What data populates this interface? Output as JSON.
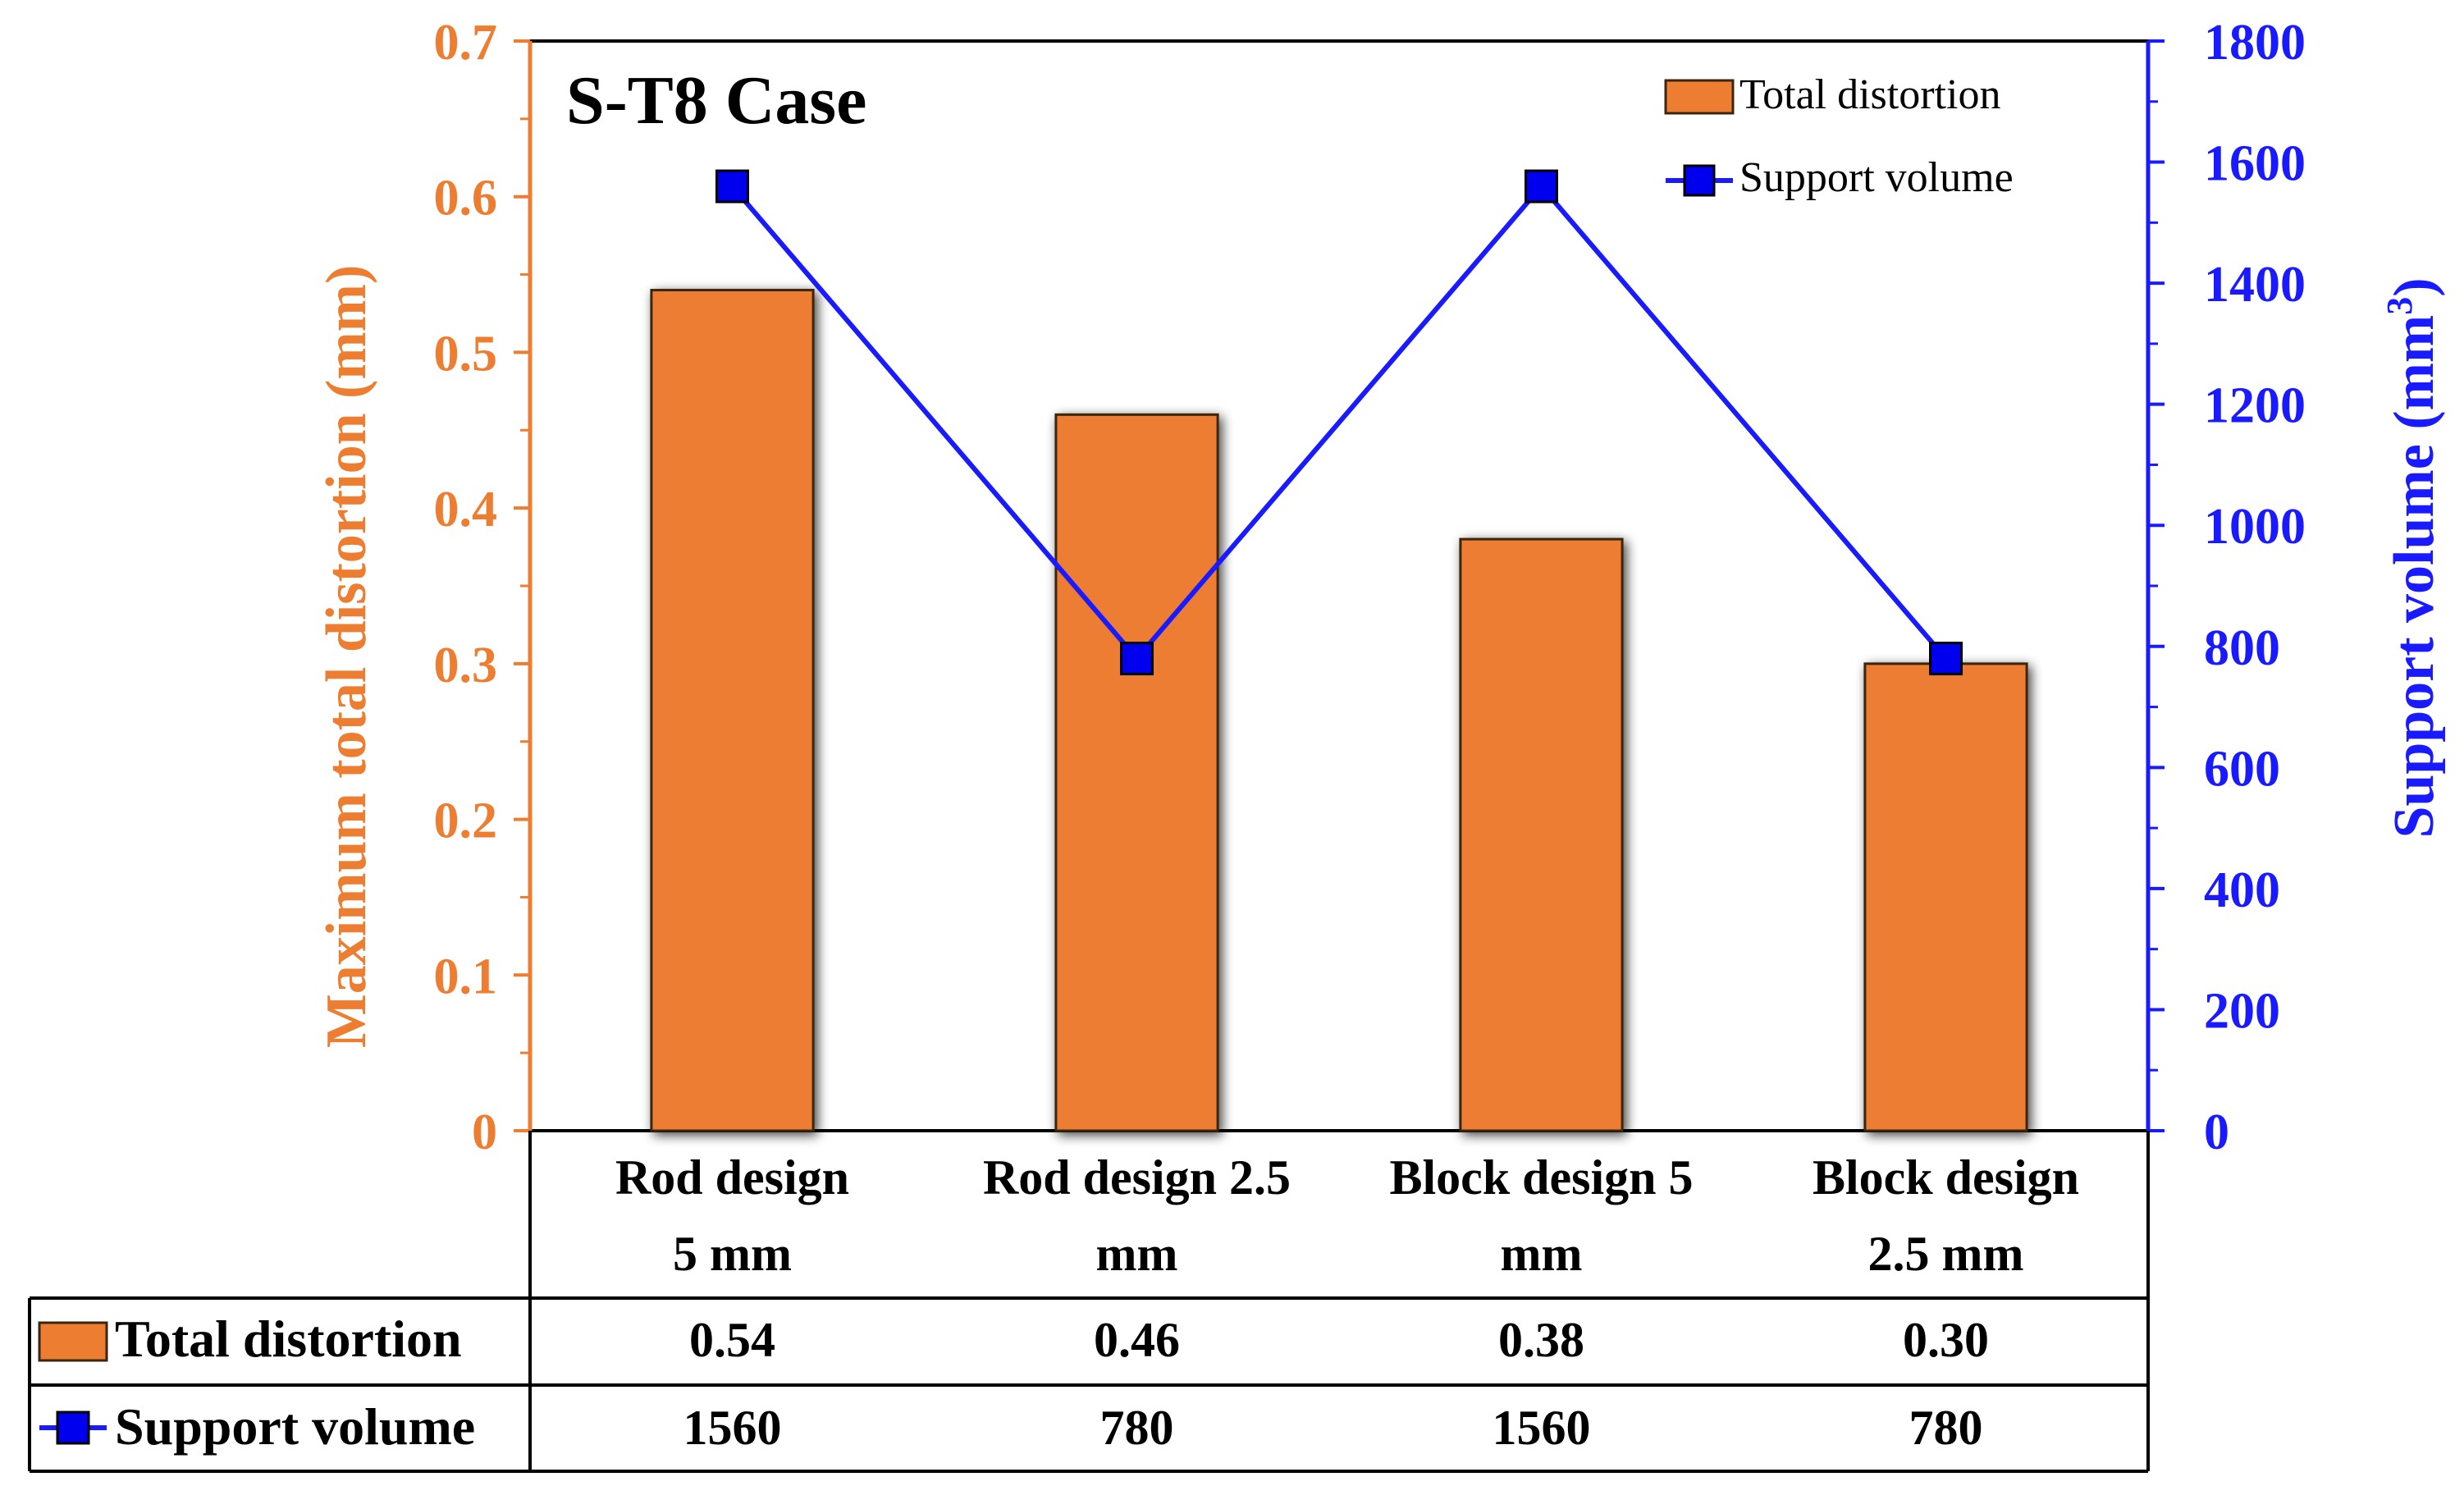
{
  "chart_data": {
    "type": "bar",
    "title": "S-T8 Case",
    "categories": [
      [
        "Rod design",
        "5 mm"
      ],
      [
        "Rod design 2.5",
        "mm"
      ],
      [
        "Block design 5",
        "mm"
      ],
      [
        "Block design",
        "2.5 mm"
      ]
    ],
    "series": [
      {
        "name": "Total distortion",
        "type": "bar",
        "axis": "left",
        "values": [
          0.54,
          0.46,
          0.38,
          0.3
        ],
        "display": [
          "0.54",
          "0.46",
          "0.38",
          "0.30"
        ]
      },
      {
        "name": "Support volume",
        "type": "line",
        "axis": "right",
        "values": [
          1560,
          780,
          1560,
          780
        ],
        "display": [
          "1560",
          "780",
          "1560",
          "780"
        ]
      }
    ],
    "ylabel": "Maximum total distortion (mm)",
    "y2label_main": "Support volume (mm",
    "y2label_sup": "3",
    "y2label_end": ")",
    "ylim": [
      0,
      0.7
    ],
    "y2lim": [
      0,
      1800
    ],
    "yticks": [
      "0",
      "0.1",
      "0.2",
      "0.3",
      "0.4",
      "0.5",
      "0.6",
      "0.7"
    ],
    "y2ticks": [
      "0",
      "200",
      "400",
      "600",
      "800",
      "1000",
      "1200",
      "1400",
      "1600",
      "1800"
    ],
    "legend_position": "top-right",
    "data_table": true
  },
  "colors": {
    "bar_fill": "#ED7D31",
    "bar_edge": "#3a2510",
    "left_axis": "#ED7D31",
    "right_axis": "#1a1aff",
    "line": "#1a1aff",
    "marker": "#0000ee",
    "text": "#000000"
  }
}
